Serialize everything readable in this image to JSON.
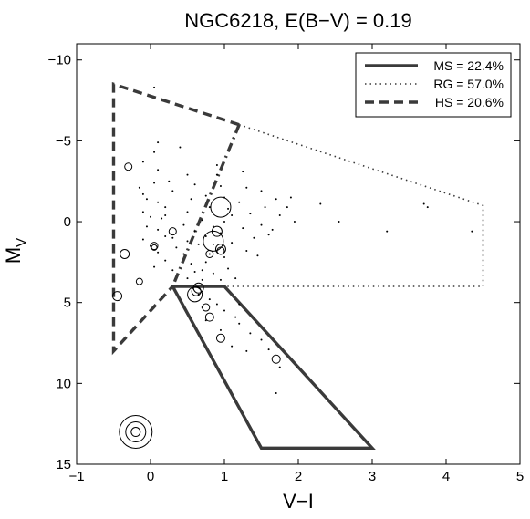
{
  "chart_data": {
    "type": "scatter",
    "title": "NGC6218,  E(B−V) = 0.19",
    "xlabel": "V−I",
    "ylabel_main": "M",
    "ylabel_sub": "V",
    "xlim": [
      -1,
      5
    ],
    "ylim": [
      15,
      -11
    ],
    "y_inverted": true,
    "xticks": [
      -1,
      0,
      1,
      2,
      3,
      4,
      5
    ],
    "xtick_labels": [
      "−1",
      "0",
      "1",
      "2",
      "3",
      "4",
      "5"
    ],
    "yticks": [
      -10,
      -5,
      0,
      5,
      10,
      15
    ],
    "ytick_labels": [
      "−10",
      "−5",
      "0",
      "5",
      "10",
      "15"
    ],
    "grid": false,
    "legend_position": "top-right",
    "colors": {
      "ink": "#000000",
      "region_lines": "#3a3a3a"
    },
    "legend": [
      {
        "label": "MS = 22.4%",
        "style": "solid"
      },
      {
        "label": "RG = 57.0%",
        "style": "dotted"
      },
      {
        "label": "HS = 20.6%",
        "style": "dashed"
      }
    ],
    "regions": [
      {
        "name": "MS",
        "style": "solid",
        "closed": true,
        "points": [
          [
            0.3,
            4
          ],
          [
            1.0,
            4
          ],
          [
            3.0,
            14
          ],
          [
            1.5,
            14
          ]
        ]
      },
      {
        "name": "RG",
        "style": "dotted",
        "closed": false,
        "points": [
          [
            1.2,
            -6
          ],
          [
            4.5,
            -1
          ],
          [
            4.5,
            4
          ],
          [
            1.0,
            4
          ]
        ]
      },
      {
        "name": "HS",
        "style": "dashed",
        "closed": false,
        "points": [
          [
            1.2,
            -6
          ],
          [
            -0.5,
            -8.5
          ],
          [
            -0.5,
            8
          ],
          [
            0.3,
            4
          ]
        ]
      },
      {
        "name": "HS-RG boundary",
        "style": "dashdot",
        "closed": false,
        "points": [
          [
            1.2,
            -6
          ],
          [
            0.3,
            4
          ]
        ]
      }
    ],
    "stars": [
      [
        0.05,
        -8.3
      ],
      [
        0.05,
        -4.3
      ],
      [
        0.1,
        -4.9
      ],
      [
        -0.1,
        -3.7
      ],
      [
        0.1,
        -3.2
      ],
      [
        0.05,
        -2.4
      ],
      [
        0.25,
        -2.5
      ],
      [
        -0.15,
        -2.1
      ],
      [
        -0.1,
        -1.7
      ],
      [
        -0.05,
        -1.4
      ],
      [
        0.1,
        -1.2
      ],
      [
        0.2,
        -0.9
      ],
      [
        -0.1,
        -0.6
      ],
      [
        0.0,
        -0.3
      ],
      [
        0.15,
        -0.2
      ],
      [
        -0.05,
        0.3
      ],
      [
        0.1,
        0.5
      ],
      [
        0.2,
        0.9
      ],
      [
        -0.1,
        1.1
      ],
      [
        0.0,
        1.5
      ],
      [
        0.1,
        1.9
      ],
      [
        0.2,
        2.4
      ],
      [
        0.05,
        2.8
      ],
      [
        0.3,
        3.0
      ],
      [
        0.4,
        -4.6
      ],
      [
        0.5,
        -2.9
      ],
      [
        0.6,
        -2.3
      ],
      [
        0.55,
        -1.4
      ],
      [
        0.5,
        -0.6
      ],
      [
        0.45,
        0.2
      ],
      [
        0.6,
        0.6
      ],
      [
        0.5,
        1.2
      ],
      [
        0.35,
        1.6
      ],
      [
        0.45,
        2.0
      ],
      [
        0.55,
        2.6
      ],
      [
        0.6,
        3.1
      ],
      [
        0.5,
        3.5
      ],
      [
        0.7,
        3.0
      ],
      [
        0.7,
        3.6
      ],
      [
        0.75,
        -1.6
      ],
      [
        0.8,
        -0.9
      ],
      [
        0.7,
        -0.1
      ],
      [
        0.85,
        0.3
      ],
      [
        0.75,
        0.9
      ],
      [
        0.65,
        1.4
      ],
      [
        0.8,
        2.0
      ],
      [
        0.75,
        2.5
      ],
      [
        0.85,
        3.2
      ],
      [
        0.95,
        3.6
      ],
      [
        0.9,
        -3.5
      ],
      [
        0.95,
        -2.2
      ],
      [
        1.0,
        -1.5
      ],
      [
        1.05,
        -0.8
      ],
      [
        1.0,
        0.0
      ],
      [
        0.95,
        0.7
      ],
      [
        1.1,
        1.3
      ],
      [
        1.0,
        2.2
      ],
      [
        1.05,
        2.9
      ],
      [
        1.15,
        3.5
      ],
      [
        1.25,
        -3.1
      ],
      [
        1.3,
        -2.1
      ],
      [
        1.2,
        -1.2
      ],
      [
        1.35,
        -0.5
      ],
      [
        1.25,
        0.4
      ],
      [
        1.4,
        1.0
      ],
      [
        1.3,
        1.8
      ],
      [
        1.5,
        -1.9
      ],
      [
        1.55,
        -0.9
      ],
      [
        1.5,
        0.2
      ],
      [
        1.6,
        0.8
      ],
      [
        1.45,
        2.1
      ],
      [
        1.7,
        -1.4
      ],
      [
        1.75,
        -0.4
      ],
      [
        1.65,
        0.5
      ],
      [
        1.9,
        -1.5
      ],
      [
        1.85,
        -0.9
      ],
      [
        1.95,
        0.0
      ],
      [
        2.3,
        -1.1
      ],
      [
        2.55,
        0.0
      ],
      [
        3.7,
        -1.1
      ],
      [
        3.75,
        -0.9
      ],
      [
        4.35,
        0.6
      ],
      [
        3.2,
        0.6
      ],
      [
        0.65,
        4.5
      ],
      [
        0.8,
        4.8
      ],
      [
        0.9,
        5.1
      ],
      [
        1.0,
        5.5
      ],
      [
        1.15,
        5.9
      ],
      [
        1.2,
        6.3
      ],
      [
        0.75,
        6.1
      ],
      [
        0.95,
        6.7
      ],
      [
        1.35,
        6.9
      ],
      [
        1.5,
        7.3
      ],
      [
        1.6,
        7.9
      ],
      [
        1.75,
        9.0
      ],
      [
        1.7,
        10.6
      ],
      [
        1.1,
        7.7
      ],
      [
        1.3,
        8.0
      ],
      [
        0.85,
        5.9
      ],
      [
        0.7,
        5.3
      ],
      [
        1.2,
        5.1
      ],
      [
        0.2,
        -0.4
      ],
      [
        1.1,
        -0.4
      ],
      [
        0.3,
        1.0
      ],
      [
        0.85,
        1.4
      ],
      [
        0.9,
        -2.9
      ],
      [
        0.3,
        -1.9
      ]
    ],
    "circles": [
      [
        -0.3,
        -3.4,
        4
      ],
      [
        -0.35,
        2.0,
        5
      ],
      [
        -0.45,
        4.6,
        5
      ],
      [
        -0.15,
        3.7,
        3.5
      ],
      [
        0.05,
        1.5,
        4
      ],
      [
        0.05,
        1.6,
        3
      ],
      [
        0.3,
        0.6,
        4
      ],
      [
        0.95,
        -0.9,
        11
      ],
      [
        0.9,
        0.6,
        5.5
      ],
      [
        0.85,
        1.2,
        11
      ],
      [
        0.95,
        1.7,
        5.5
      ],
      [
        0.95,
        1.8,
        4
      ],
      [
        0.8,
        2.0,
        4
      ],
      [
        0.65,
        4.1,
        5.5
      ],
      [
        0.6,
        4.5,
        8
      ],
      [
        0.62,
        4.3,
        5
      ],
      [
        0.75,
        5.3,
        4
      ],
      [
        0.8,
        5.9,
        4.5
      ],
      [
        0.95,
        7.2,
        4.5
      ],
      [
        1.7,
        8.5,
        4.5
      ]
    ],
    "size_key": {
      "x": -0.2,
      "y": 13,
      "radii": [
        18,
        11,
        5
      ]
    }
  }
}
